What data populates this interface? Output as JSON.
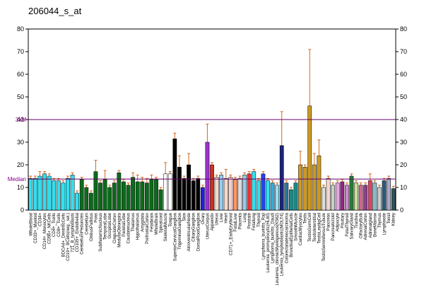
{
  "chart_data": {
    "type": "bar",
    "title": "206044_s_at",
    "categories": [
      "WholeBlood",
      "CD33+_Myeloid",
      "CD34+",
      "CD14+_Monocytes",
      "CD56+_NKCells",
      "CD4+_Tcells",
      "CD8+_Tcells",
      "BDCA4+_DentriticCells",
      "CD19+_BCells(neg._sel.)",
      "721_B_lymphoblasts",
      "CD105+_Endothelial",
      "CerebellumPeduncles",
      "Cerebellum",
      "GlobusPallidus",
      "Pons",
      "SubthalamicNucleus",
      "TemporalLobe",
      "OccipitalLobe",
      "CingulateCortex",
      "MedullaOblongata",
      "ParietalLobe",
      "Caudatenucleus",
      "Thalamus",
      "Hypothalamus",
      "Amygdala",
      "PrefrontalCortex",
      "Fetalbrain",
      "WholeBrain",
      "Spinalcord",
      "SkeletalMuscle",
      "Tongue",
      "SuperiorCervicalGanglion",
      "TrigeminalGanglion",
      "Skin",
      "AtrioventricularNode",
      "CiliaryGanglion",
      "DorsalRootGanglion",
      "Ovary",
      "UterusCorpus",
      "Appendix",
      "Uterus",
      "Liver",
      "Heart",
      "CD71+_EarlyErythroid",
      "FetalLiver",
      "Placenta",
      "Lung",
      "Prostate",
      "Fetallung",
      "Thyroid",
      "Lymphoma_burkitts_Raji",
      "Leukemia_promyelocytic(HL60)",
      "Lymphoma_burkitts_Daudi",
      "Leukemia_chronicMyelogenous(K562)",
      "Leukemia_lymphoblastic(MOLT4)",
      "Colorectaladenocarcinoma",
      "BronchialEpithelialCells",
      "SmoothMuscle",
      "CardiacMyocytes",
      "Testis",
      "TestisGermCell",
      "TestisInterstitial",
      "TestisLeydigCell",
      "TestisSeminiferousTubule",
      "Pancreas",
      "PancreaticIslet",
      "Adipocyte",
      "Pituitary",
      "FetalThyroid",
      "SalivaryGland",
      "Trachea",
      "OlfactoryBulb",
      "AdrenalCortex",
      "Adrenalgland",
      "BoneMarrow",
      "Thymus",
      "Lymphnode",
      "Tonsil",
      "Kidney"
    ],
    "values": [
      14,
      14,
      15,
      16,
      15,
      13,
      13,
      12,
      14,
      15.5,
      7.5,
      13.5,
      10,
      7.5,
      17,
      12,
      13.5,
      10,
      12,
      16.5,
      12.5,
      11,
      14.5,
      12.5,
      12.5,
      12,
      13.5,
      13.5,
      9,
      16,
      16,
      31.5,
      19,
      14,
      20,
      13,
      14,
      10,
      30,
      20,
      14.5,
      15.5,
      14,
      14.5,
      13.5,
      14,
      15.5,
      16,
      17,
      13,
      16,
      13,
      12,
      11,
      28.5,
      12,
      9,
      12,
      20,
      19,
      46,
      20,
      24,
      10,
      14,
      11,
      12,
      12.5,
      11,
      15,
      12,
      11,
      11,
      13,
      12,
      10,
      13,
      14,
      9.5
    ],
    "errors": [
      1,
      1,
      2,
      1,
      1,
      1,
      1,
      1,
      1,
      1,
      1,
      1,
      1,
      1,
      5,
      1,
      4,
      1,
      1,
      1,
      1,
      1,
      2,
      3,
      2,
      2,
      2,
      1,
      1,
      5,
      1,
      2.5,
      5,
      1,
      5,
      1,
      1,
      1,
      8,
      1,
      1,
      1,
      4,
      1,
      1,
      1,
      1,
      1,
      1,
      1,
      1,
      1,
      1,
      1,
      15,
      1,
      1,
      1,
      6,
      1,
      25,
      5,
      7,
      1,
      1,
      1,
      1,
      1,
      1,
      1,
      1,
      1,
      1,
      3,
      1,
      1,
      1,
      1,
      1
    ],
    "colors": [
      "#33e0f0",
      "#33e0f0",
      "#33e0f0",
      "#33e0f0",
      "#33e0f0",
      "#33e0f0",
      "#33e0f0",
      "#33e0f0",
      "#33e0f0",
      "#33e0f0",
      "#33e0f0",
      "#0b6b1a",
      "#0b6b1a",
      "#0b6b1a",
      "#0b6b1a",
      "#0b6b1a",
      "#0b6b1a",
      "#0b6b1a",
      "#0b6b1a",
      "#0b6b1a",
      "#0b6b1a",
      "#0b6b1a",
      "#0b6b1a",
      "#0b6b1a",
      "#0b6b1a",
      "#0b6b1a",
      "#0b6b1a",
      "#0b6b1a",
      "#0b6b1a",
      "#ffffff",
      "#ffffff",
      "#000000",
      "#000000",
      "#000000",
      "#000000",
      "#000000",
      "#000000",
      "#2020e0",
      "#9933cc",
      "#cc3322",
      "#f3d9cc",
      "#99ccee",
      "#f3d9cc",
      "#ffcccc",
      "#ff9966",
      "#dddddd",
      "#99ccee",
      "#ee3333",
      "#33e0f0",
      "#33e0f0",
      "#2244ee",
      "#33e0f0",
      "#33aadd",
      "#99ddee",
      "#1a237e",
      "#2a7a9a",
      "#1a8a8a",
      "#1a8a8a",
      "#cc9922",
      "#cc9922",
      "#cc9922",
      "#cc9922",
      "#cc9922",
      "#dddddd",
      "#f3d9cc",
      "#cccccc",
      "#ddaadd",
      "#992288",
      "#cc88cc",
      "#2a7a3a",
      "#ccdd99",
      "#cc6688",
      "#884488",
      "#dd4466",
      "#88bbcc",
      "#cccccc",
      "#2a5a7a",
      "#aaaacc",
      "#335555"
    ],
    "median": {
      "value": 13.7,
      "label": "Median"
    },
    "threshold": {
      "value": 40,
      "label": "3xM"
    },
    "ylim": [
      0,
      80
    ],
    "yticks": [
      0,
      10,
      20,
      30,
      40,
      50,
      60,
      70,
      80
    ]
  }
}
